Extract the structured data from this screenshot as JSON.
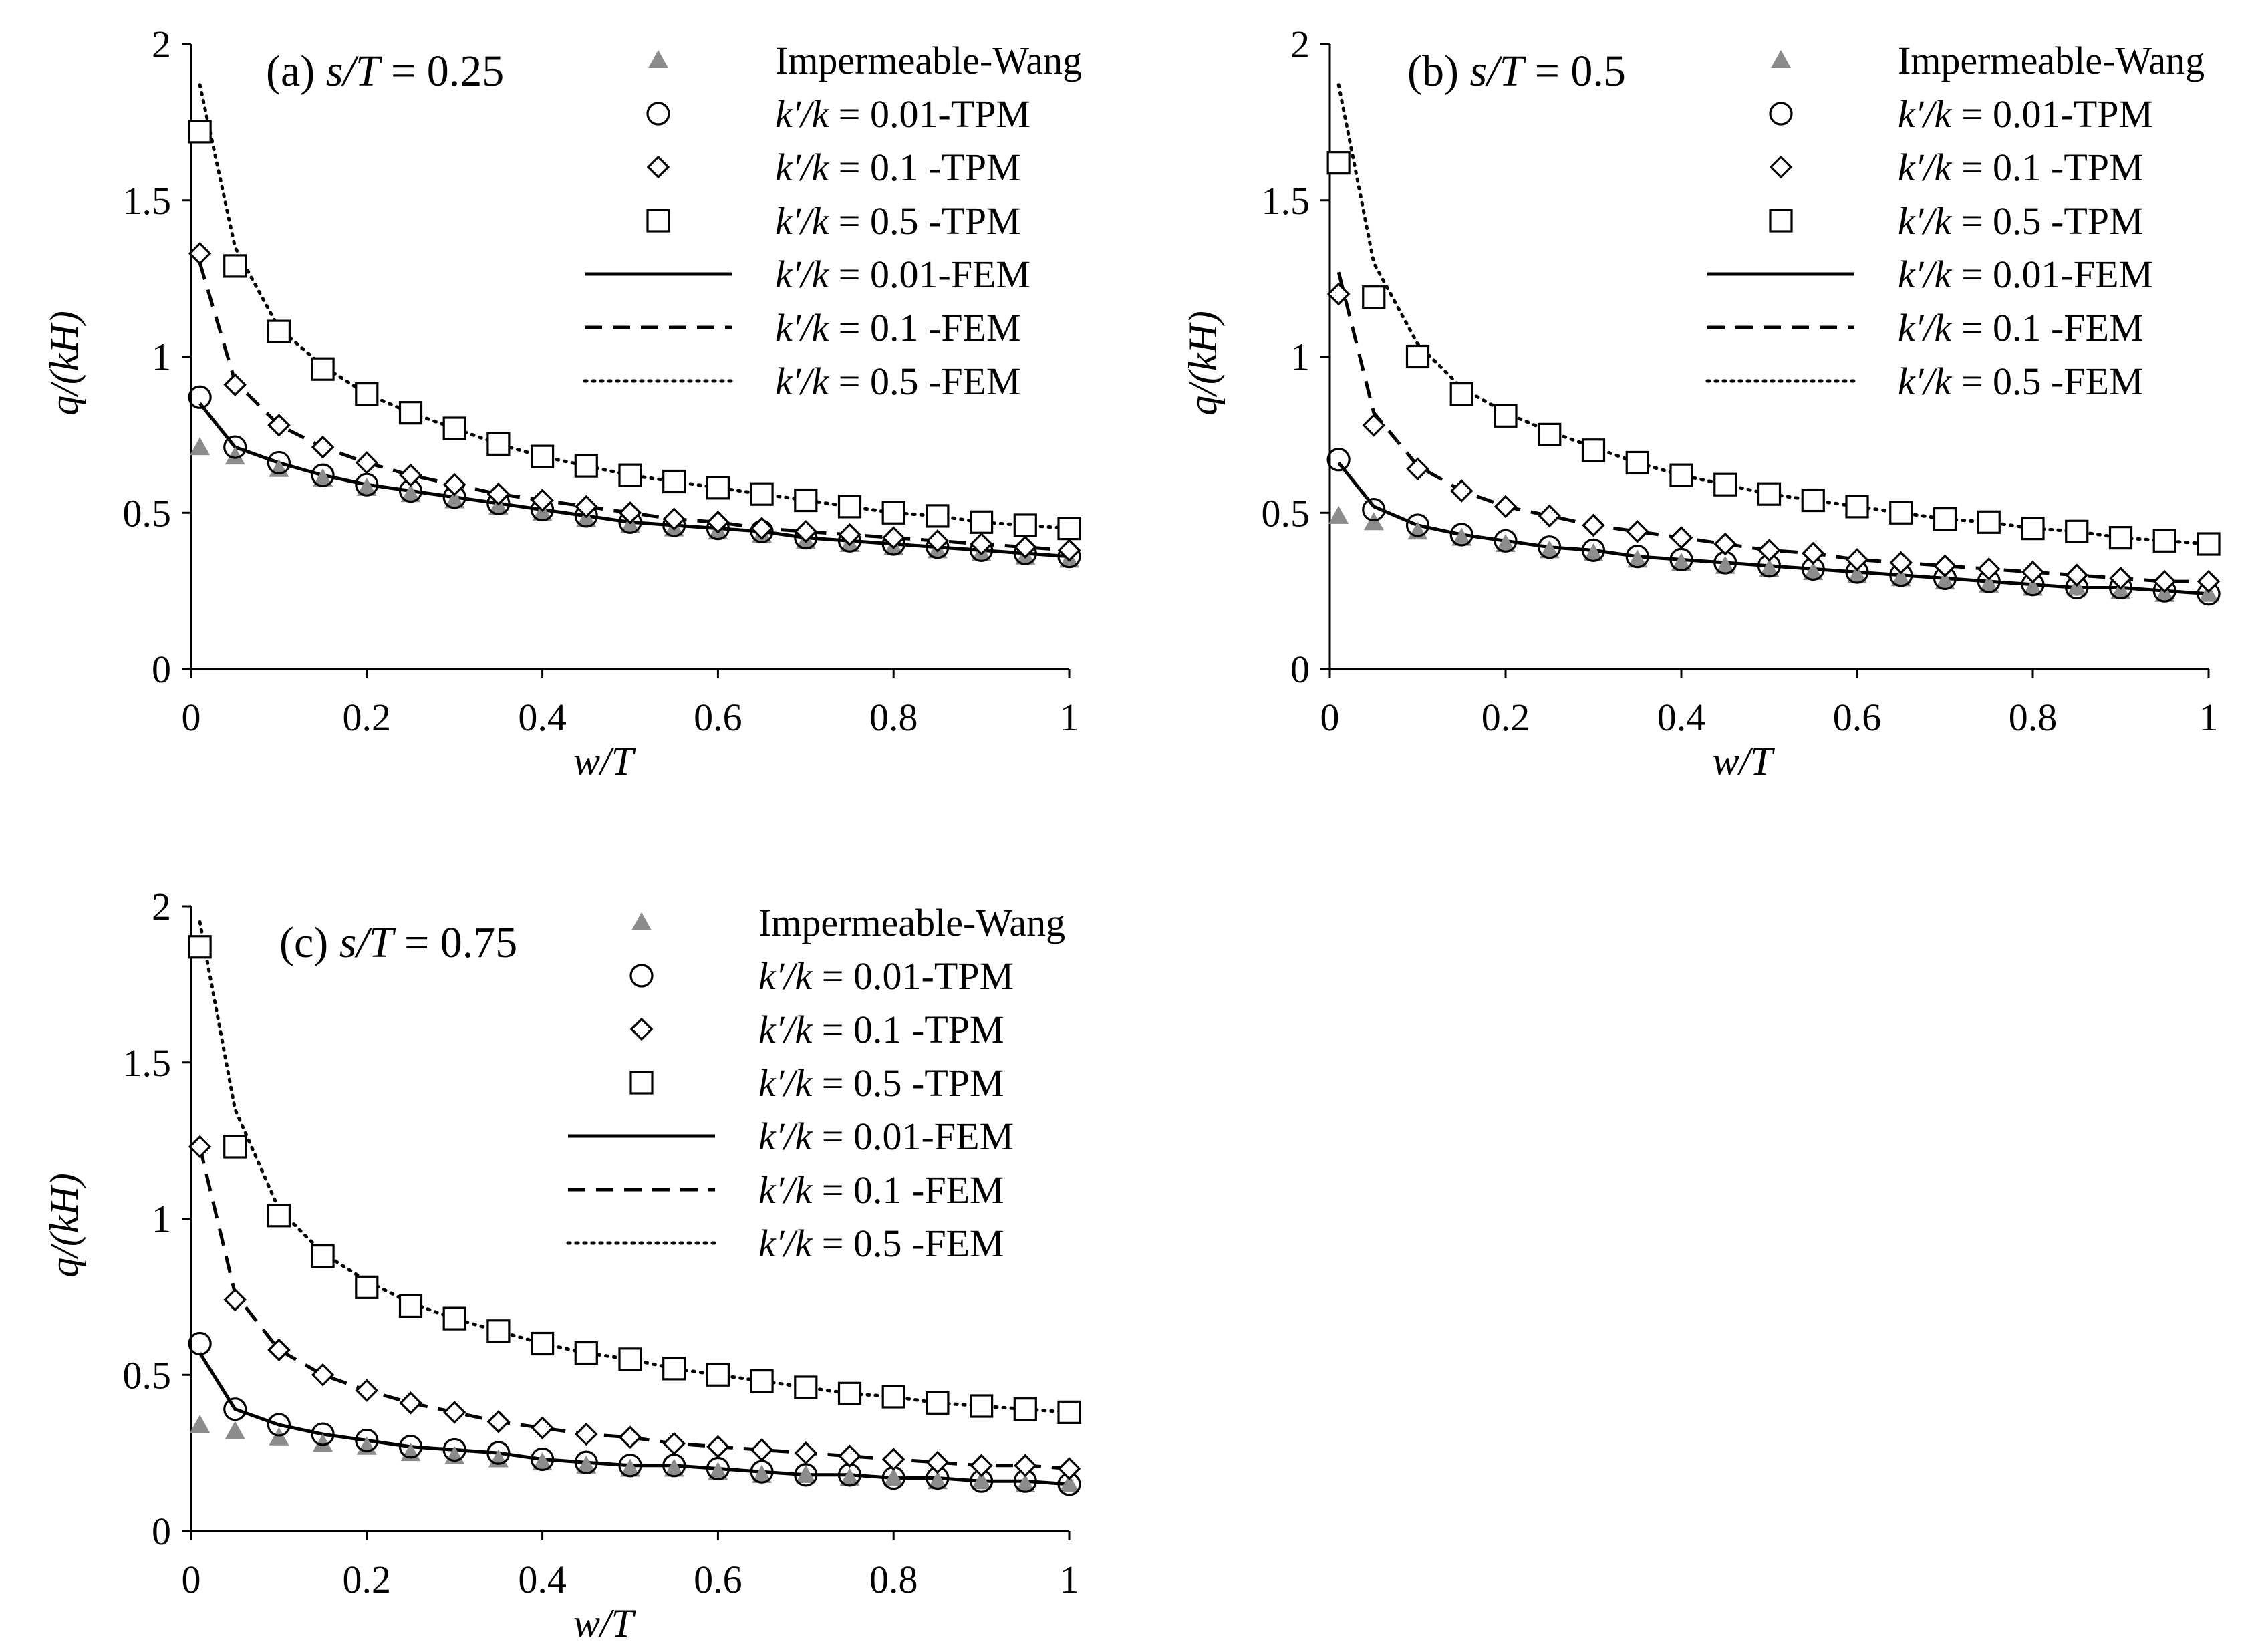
{
  "chart_data": [
    {
      "type": "line",
      "panel_label": "(a)",
      "title_italic_part": "s/T",
      "title_value": "= 0.25",
      "xlabel": "w/T",
      "ylabel": "q/(kH)",
      "xlim": [
        0,
        1
      ],
      "ylim": [
        0,
        2
      ],
      "xticks": [
        "0",
        "0.2",
        "0.4",
        "0.6",
        "0.8",
        "1"
      ],
      "yticks": [
        "0",
        "0.5",
        "1",
        "1.5",
        "2"
      ],
      "x_markers": [
        0.01,
        0.05,
        0.1,
        0.15,
        0.2,
        0.25,
        0.3,
        0.35,
        0.4,
        0.45,
        0.5,
        0.55,
        0.6,
        0.65,
        0.7,
        0.75,
        0.8,
        0.85,
        0.9,
        0.95,
        1.0
      ],
      "series": [
        {
          "name": "Impermeable-Wang",
          "style": "triangle",
          "values": [
            0.71,
            0.68,
            0.64,
            0.61,
            0.58,
            0.56,
            0.54,
            0.52,
            0.5,
            0.48,
            0.46,
            0.45,
            0.44,
            0.43,
            0.41,
            0.4,
            0.39,
            0.38,
            0.37,
            0.36,
            0.35
          ]
        },
        {
          "name": "k'/k = 0.01-TPM",
          "style": "circle",
          "values": [
            0.87,
            0.71,
            0.66,
            0.62,
            0.59,
            0.57,
            0.55,
            0.53,
            0.51,
            0.49,
            0.47,
            0.46,
            0.45,
            0.44,
            0.42,
            0.41,
            0.4,
            0.39,
            0.38,
            0.37,
            0.36
          ]
        },
        {
          "name": "k'/k = 0.1 -TPM",
          "style": "diamond",
          "values": [
            1.33,
            0.91,
            0.78,
            0.71,
            0.66,
            0.62,
            0.59,
            0.56,
            0.54,
            0.52,
            0.5,
            0.48,
            0.47,
            0.45,
            0.44,
            0.43,
            0.42,
            0.41,
            0.4,
            0.39,
            0.38
          ]
        },
        {
          "name": "k'/k = 0.5 -TPM",
          "style": "square",
          "values": [
            1.72,
            1.29,
            1.08,
            0.96,
            0.88,
            0.82,
            0.77,
            0.72,
            0.68,
            0.65,
            0.62,
            0.6,
            0.58,
            0.56,
            0.54,
            0.52,
            0.5,
            0.49,
            0.47,
            0.46,
            0.45
          ]
        },
        {
          "name": "k'/k = 0.01-FEM",
          "style": "solid",
          "values": [
            0.85,
            0.71,
            0.66,
            0.62,
            0.59,
            0.57,
            0.55,
            0.53,
            0.51,
            0.49,
            0.47,
            0.46,
            0.45,
            0.44,
            0.42,
            0.41,
            0.4,
            0.39,
            0.38,
            0.37,
            0.36
          ]
        },
        {
          "name": "k'/k = 0.1 -FEM",
          "style": "dashed",
          "values": [
            1.3,
            0.92,
            0.78,
            0.71,
            0.66,
            0.62,
            0.59,
            0.56,
            0.54,
            0.52,
            0.5,
            0.48,
            0.47,
            0.45,
            0.44,
            0.43,
            0.42,
            0.41,
            0.4,
            0.39,
            0.38
          ]
        },
        {
          "name": "k'/k = 0.5 -FEM",
          "style": "dotted",
          "values": [
            1.87,
            1.35,
            1.09,
            0.97,
            0.88,
            0.82,
            0.77,
            0.72,
            0.68,
            0.65,
            0.62,
            0.6,
            0.58,
            0.56,
            0.54,
            0.52,
            0.5,
            0.49,
            0.47,
            0.46,
            0.45
          ]
        }
      ]
    },
    {
      "type": "line",
      "panel_label": "(b)",
      "title_italic_part": "s/T",
      "title_value": "= 0.5",
      "xlabel": "w/T",
      "ylabel": "q/(kH)",
      "xlim": [
        0,
        1
      ],
      "ylim": [
        0,
        2
      ],
      "xticks": [
        "0",
        "0.2",
        "0.4",
        "0.6",
        "0.8",
        "1"
      ],
      "yticks": [
        "0",
        "0.5",
        "1",
        "1.5",
        "2"
      ],
      "x_markers": [
        0.01,
        0.05,
        0.1,
        0.15,
        0.2,
        0.25,
        0.3,
        0.35,
        0.4,
        0.45,
        0.5,
        0.55,
        0.6,
        0.65,
        0.7,
        0.75,
        0.8,
        0.85,
        0.9,
        0.95,
        1.0
      ],
      "series": [
        {
          "name": "Impermeable-Wang",
          "style": "triangle",
          "values": [
            0.49,
            0.47,
            0.44,
            0.42,
            0.4,
            0.38,
            0.37,
            0.35,
            0.34,
            0.33,
            0.32,
            0.31,
            0.3,
            0.29,
            0.28,
            0.27,
            0.26,
            0.26,
            0.25,
            0.24,
            0.24
          ]
        },
        {
          "name": "k'/k = 0.01-TPM",
          "style": "circle",
          "values": [
            0.67,
            0.51,
            0.46,
            0.43,
            0.41,
            0.39,
            0.38,
            0.36,
            0.35,
            0.34,
            0.33,
            0.32,
            0.31,
            0.3,
            0.29,
            0.28,
            0.27,
            0.26,
            0.26,
            0.25,
            0.24
          ]
        },
        {
          "name": "k'/k = 0.1 -TPM",
          "style": "diamond",
          "values": [
            1.2,
            0.78,
            0.64,
            0.57,
            0.52,
            0.49,
            0.46,
            0.44,
            0.42,
            0.4,
            0.38,
            0.37,
            0.35,
            0.34,
            0.33,
            0.32,
            0.31,
            0.3,
            0.29,
            0.28,
            0.28
          ]
        },
        {
          "name": "k'/k = 0.5 -TPM",
          "style": "square",
          "values": [
            1.62,
            1.19,
            1.0,
            0.88,
            0.81,
            0.75,
            0.7,
            0.66,
            0.62,
            0.59,
            0.56,
            0.54,
            0.52,
            0.5,
            0.48,
            0.47,
            0.45,
            0.44,
            0.42,
            0.41,
            0.4
          ]
        },
        {
          "name": "k'/k = 0.01-FEM",
          "style": "solid",
          "values": [
            0.66,
            0.52,
            0.46,
            0.43,
            0.41,
            0.39,
            0.38,
            0.36,
            0.35,
            0.34,
            0.33,
            0.32,
            0.31,
            0.3,
            0.29,
            0.28,
            0.27,
            0.26,
            0.26,
            0.25,
            0.24
          ]
        },
        {
          "name": "k'/k = 0.1 -FEM",
          "style": "dashed",
          "values": [
            1.27,
            0.82,
            0.65,
            0.57,
            0.52,
            0.49,
            0.46,
            0.44,
            0.42,
            0.4,
            0.38,
            0.37,
            0.35,
            0.34,
            0.33,
            0.32,
            0.31,
            0.3,
            0.29,
            0.28,
            0.28
          ]
        },
        {
          "name": "k'/k = 0.5 -FEM",
          "style": "dotted",
          "values": [
            1.87,
            1.3,
            1.04,
            0.9,
            0.82,
            0.76,
            0.71,
            0.66,
            0.62,
            0.59,
            0.56,
            0.54,
            0.52,
            0.5,
            0.48,
            0.47,
            0.45,
            0.44,
            0.42,
            0.41,
            0.4
          ]
        }
      ]
    },
    {
      "type": "line",
      "panel_label": "(c)",
      "title_italic_part": "s/T",
      "title_value": "= 0.75",
      "xlabel": "w/T",
      "ylabel": "q/(kH)",
      "xlim": [
        0,
        1
      ],
      "ylim": [
        0,
        2
      ],
      "xticks": [
        "0",
        "0.2",
        "0.4",
        "0.6",
        "0.8",
        "1"
      ],
      "yticks": [
        "0",
        "0.5",
        "1",
        "1.5",
        "2"
      ],
      "x_markers": [
        0.01,
        0.05,
        0.1,
        0.15,
        0.2,
        0.25,
        0.3,
        0.35,
        0.4,
        0.45,
        0.5,
        0.55,
        0.6,
        0.65,
        0.7,
        0.75,
        0.8,
        0.85,
        0.9,
        0.95,
        1.0
      ],
      "series": [
        {
          "name": "Impermeable-Wang",
          "style": "triangle",
          "values": [
            0.34,
            0.32,
            0.3,
            0.28,
            0.27,
            0.25,
            0.24,
            0.23,
            0.22,
            0.21,
            0.2,
            0.2,
            0.19,
            0.18,
            0.18,
            0.17,
            0.17,
            0.16,
            0.16,
            0.15,
            0.15
          ]
        },
        {
          "name": "k'/k = 0.01-TPM",
          "style": "circle",
          "values": [
            0.6,
            0.39,
            0.34,
            0.31,
            0.29,
            0.27,
            0.26,
            0.25,
            0.23,
            0.22,
            0.21,
            0.21,
            0.2,
            0.19,
            0.18,
            0.18,
            0.17,
            0.17,
            0.16,
            0.16,
            0.15
          ]
        },
        {
          "name": "k'/k = 0.1 -TPM",
          "style": "diamond",
          "values": [
            1.23,
            0.74,
            0.58,
            0.5,
            0.45,
            0.41,
            0.38,
            0.35,
            0.33,
            0.31,
            0.3,
            0.28,
            0.27,
            0.26,
            0.25,
            0.24,
            0.23,
            0.22,
            0.21,
            0.21,
            0.2
          ]
        },
        {
          "name": "k'/k = 0.5 -TPM",
          "style": "square",
          "values": [
            1.87,
            1.23,
            1.01,
            0.88,
            0.78,
            0.72,
            0.68,
            0.64,
            0.6,
            0.57,
            0.55,
            0.52,
            0.5,
            0.48,
            0.46,
            0.44,
            0.43,
            0.41,
            0.4,
            0.39,
            0.38
          ]
        },
        {
          "name": "k'/k = 0.01-FEM",
          "style": "solid",
          "values": [
            0.57,
            0.39,
            0.34,
            0.31,
            0.29,
            0.27,
            0.26,
            0.25,
            0.23,
            0.22,
            0.21,
            0.21,
            0.2,
            0.19,
            0.18,
            0.18,
            0.17,
            0.17,
            0.16,
            0.16,
            0.15
          ]
        },
        {
          "name": "k'/k = 0.1 -FEM",
          "style": "dashed",
          "values": [
            1.23,
            0.76,
            0.58,
            0.5,
            0.45,
            0.41,
            0.38,
            0.35,
            0.33,
            0.31,
            0.3,
            0.28,
            0.27,
            0.26,
            0.25,
            0.24,
            0.23,
            0.22,
            0.21,
            0.21,
            0.2
          ]
        },
        {
          "name": "k'/k = 0.5 -FEM",
          "style": "dotted",
          "values": [
            1.95,
            1.35,
            1.03,
            0.89,
            0.8,
            0.73,
            0.68,
            0.64,
            0.6,
            0.57,
            0.55,
            0.52,
            0.5,
            0.48,
            0.46,
            0.44,
            0.43,
            0.41,
            0.4,
            0.39,
            0.38
          ]
        }
      ]
    }
  ],
  "legend": [
    {
      "prefix": "",
      "label": "Impermeable-Wang",
      "style": "triangle"
    },
    {
      "prefix": "k′/k",
      "label": " = 0.01-TPM",
      "style": "circle"
    },
    {
      "prefix": "k′/k",
      "label": " = 0.1  -TPM",
      "style": "diamond"
    },
    {
      "prefix": "k′/k",
      "label": " = 0.5  -TPM",
      "style": "square"
    },
    {
      "prefix": "k′/k",
      "label": " = 0.01-FEM",
      "style": "solid"
    },
    {
      "prefix": "k′/k",
      "label": " = 0.1  -FEM",
      "style": "dashed"
    },
    {
      "prefix": "k′/k",
      "label": " = 0.5  -FEM",
      "style": "dotted"
    }
  ],
  "colors": {
    "axis": "#000000",
    "triangle_fill": "#8c8c8c",
    "marker_stroke": "#000000",
    "background": "#ffffff"
  }
}
